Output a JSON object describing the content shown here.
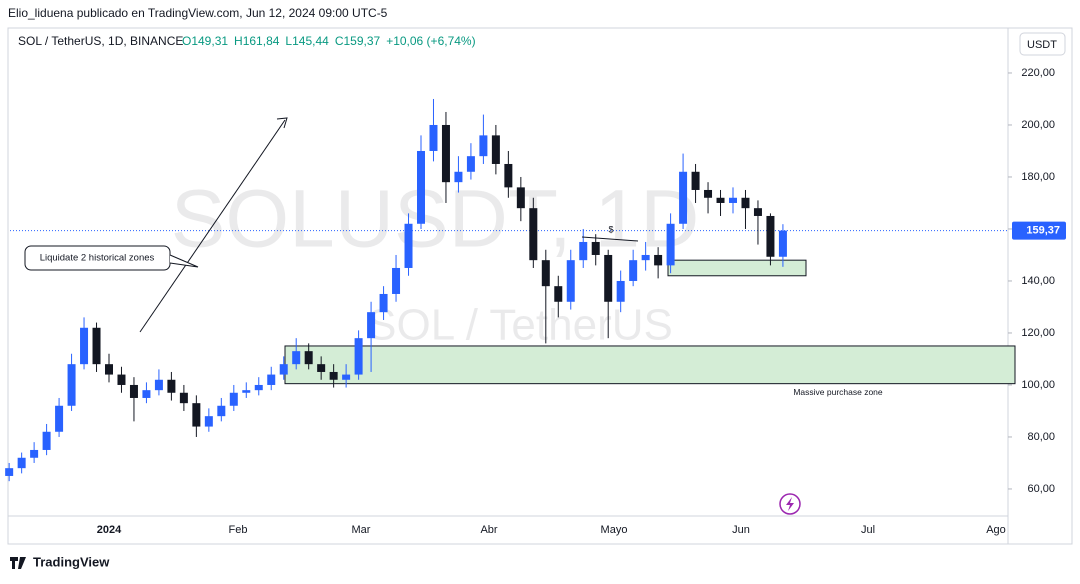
{
  "header": {
    "publisher": "Elio_liduena publicado en TradingView.com, Jun 12, 2024 09:00 UTC-5",
    "symbol": "SOL / TetherUS, 1D, BINANCE",
    "ohlc": [
      "O149,31",
      "H161,84",
      "L145,44",
      "C159,37",
      "+10,06 (+6,74%)"
    ],
    "currency_button": "USDT"
  },
  "footer": {
    "brand": "TradingView"
  },
  "chart_data": {
    "type": "candlestick",
    "watermark": [
      "SOLUSDT, 1D",
      "SOL / TetherUS"
    ],
    "x_labels": [
      "2024",
      "Feb",
      "Mar",
      "Abr",
      "Mayo",
      "Jun",
      "Jul",
      "Ago"
    ],
    "series": [
      {
        "name": "SOLUSDT",
        "up_color": "#2962ff",
        "down_color": "#131722",
        "open": [
          65,
          68,
          72,
          75,
          82,
          92,
          108,
          122,
          108,
          104,
          100,
          95,
          98,
          102,
          97,
          93,
          84,
          88,
          92,
          97,
          98,
          100,
          104,
          108,
          113,
          108,
          105,
          102,
          104,
          118,
          128,
          135,
          145,
          162,
          190,
          200,
          178,
          182,
          188,
          196,
          185,
          176,
          168,
          148,
          138,
          132,
          148,
          155,
          150,
          132,
          140,
          148,
          150,
          146,
          162,
          182,
          175,
          172,
          170,
          172,
          168,
          165,
          149.31
        ],
        "high": [
          70,
          74,
          78,
          85,
          95,
          112,
          126,
          124,
          112,
          107,
          103,
          101,
          106,
          105,
          100,
          96,
          91,
          95,
          100,
          101,
          103,
          107,
          111,
          118,
          116,
          111,
          108,
          108,
          121,
          132,
          138,
          150,
          166,
          196,
          210,
          205,
          188,
          193,
          204,
          200,
          190,
          180,
          172,
          152,
          142,
          152,
          160,
          158,
          152,
          144,
          152,
          155,
          153,
          166,
          189,
          185,
          178,
          175,
          176,
          175,
          171,
          166,
          161.84
        ],
        "low": [
          63,
          66,
          70,
          73,
          80,
          90,
          106,
          105,
          101,
          97,
          86,
          93,
          96,
          94,
          90,
          80,
          82,
          86,
          90,
          95,
          96,
          98,
          102,
          106,
          106,
          102,
          99,
          99,
          102,
          105,
          125,
          132,
          142,
          160,
          186,
          170,
          174,
          179,
          185,
          181,
          172,
          163,
          145,
          116,
          126,
          129,
          145,
          146,
          118,
          128,
          138,
          144,
          141,
          143,
          160,
          170,
          166,
          165,
          166,
          160,
          154,
          146,
          145.44
        ],
        "close": [
          68,
          72,
          75,
          82,
          92,
          108,
          122,
          108,
          104,
          100,
          95,
          98,
          102,
          97,
          93,
          84,
          88,
          92,
          97,
          98,
          100,
          104,
          108,
          113,
          108,
          105,
          102,
          104,
          118,
          128,
          135,
          145,
          162,
          190,
          200,
          178,
          182,
          188,
          196,
          185,
          176,
          168,
          148,
          138,
          132,
          148,
          155,
          150,
          132,
          140,
          148,
          150,
          146,
          162,
          182,
          175,
          172,
          170,
          172,
          168,
          165,
          149.31,
          159.37
        ]
      }
    ],
    "price_line": {
      "value": 159.37,
      "label": "159,37",
      "color": "#2962ff"
    },
    "zones": [
      {
        "low": 100.5,
        "high": 115,
        "label": "Massive purchase zone",
        "color": "#d4edd6"
      },
      {
        "low": 142,
        "high": 148,
        "color": "#d4edd6"
      }
    ],
    "annotations": [
      "Liquidate 2 historical zones",
      "$"
    ],
    "ylim": [
      49.6,
      237.3
    ],
    "yticks": [
      {
        "value": 60,
        "label": "60,00"
      },
      {
        "value": 80,
        "label": "80,00"
      },
      {
        "value": 100,
        "label": "100,00"
      },
      {
        "value": 120,
        "label": "120,00"
      },
      {
        "value": 140,
        "label": "140,00"
      },
      {
        "value": 160,
        "label": "160,00"
      },
      {
        "value": 180,
        "label": "180,00"
      },
      {
        "value": 200,
        "label": "200,00"
      },
      {
        "value": 220,
        "label": "220,00"
      }
    ]
  }
}
